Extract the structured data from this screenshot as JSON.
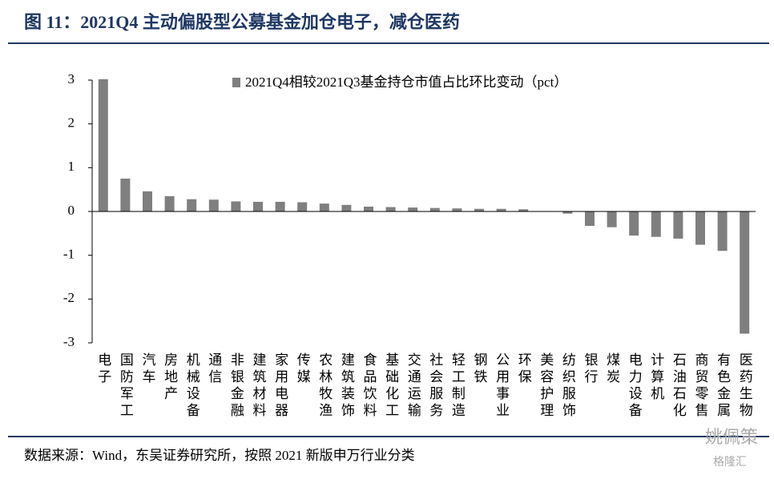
{
  "chart_data": {
    "type": "bar",
    "title": "图 11：2021Q4 主动偏股型公募基金加仓电子，减仓医药",
    "source": "数据来源：Wind，东吴证券研究所，按照 2021 新版申万行业分类",
    "watermark": [
      "姚佩策",
      "格隆汇"
    ],
    "categories": [
      "电子",
      "国防军工",
      "汽车",
      "房地产",
      "机械设备",
      "通信",
      "非银金融",
      "建筑材料",
      "家用电器",
      "传媒",
      "农林牧渔",
      "建筑装饰",
      "食品饮料",
      "基础化工",
      "交通运输",
      "社会服务",
      "轻工制造",
      "钢铁",
      "公用事业",
      "环保",
      "美容护理",
      "纺织服饰",
      "银行",
      "煤炭",
      "电力设备",
      "计算机",
      "石油石化",
      "商贸零售",
      "有色金属",
      "医药生物"
    ],
    "series": [
      {
        "name": "2021Q4相较2021Q3基金持仓市值占比环比变动（pct）",
        "color": "#7f7f7f",
        "values": [
          3.02,
          0.75,
          0.46,
          0.35,
          0.28,
          0.27,
          0.23,
          0.22,
          0.22,
          0.21,
          0.18,
          0.15,
          0.11,
          0.1,
          0.09,
          0.08,
          0.07,
          0.06,
          0.06,
          0.05,
          0.01,
          -0.05,
          -0.33,
          -0.36,
          -0.55,
          -0.58,
          -0.62,
          -0.76,
          -0.9,
          -2.79
        ]
      }
    ],
    "ylim": [
      -3,
      3
    ],
    "yticks": [
      -3,
      -2,
      -1,
      0,
      1,
      2,
      3
    ],
    "grid": false,
    "legend": "top"
  }
}
